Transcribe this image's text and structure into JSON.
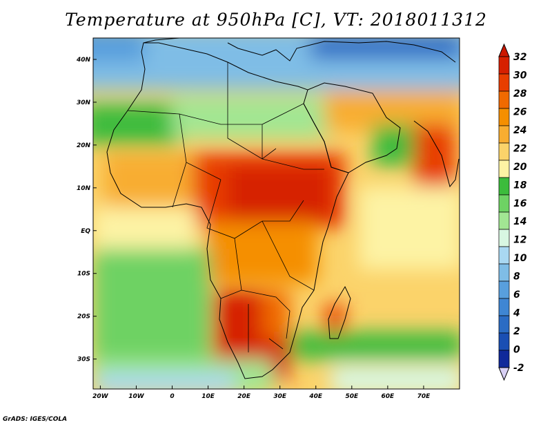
{
  "title": "Temperature at 950hPa [C], VT: 2018011312",
  "credit": "GrADS: IGES/COLA",
  "map": {
    "lon_range": [
      -22,
      80
    ],
    "lat_range": [
      -37,
      45
    ],
    "lat_ticks": [
      "40N",
      "30N",
      "20N",
      "10N",
      "EQ",
      "10S",
      "20S",
      "30S"
    ],
    "lon_ticks": [
      "20W",
      "10W",
      "0",
      "10E",
      "20E",
      "30E",
      "40E",
      "50E",
      "60E",
      "70E"
    ],
    "field": "temperature",
    "units": "C"
  },
  "colorbar": {
    "labels": [
      "32",
      "30",
      "28",
      "26",
      "24",
      "22",
      "20",
      "18",
      "16",
      "14",
      "12",
      "10",
      "8",
      "6",
      "4",
      "2",
      "0",
      "-2"
    ],
    "colors": [
      "#d62000",
      "#e83e00",
      "#f06a00",
      "#f58f00",
      "#f8ad30",
      "#fbd36a",
      "#fdf3a4",
      "#3cbc3c",
      "#6ed264",
      "#a2e693",
      "#d8f7e2",
      "#a9d8f2",
      "#7fbde6",
      "#589fdd",
      "#3f86d3",
      "#2b6cc4",
      "#1a4fb3",
      "#10299a"
    ],
    "top_color": "#cc1800",
    "bottom_color": "#d8d0f4"
  }
}
